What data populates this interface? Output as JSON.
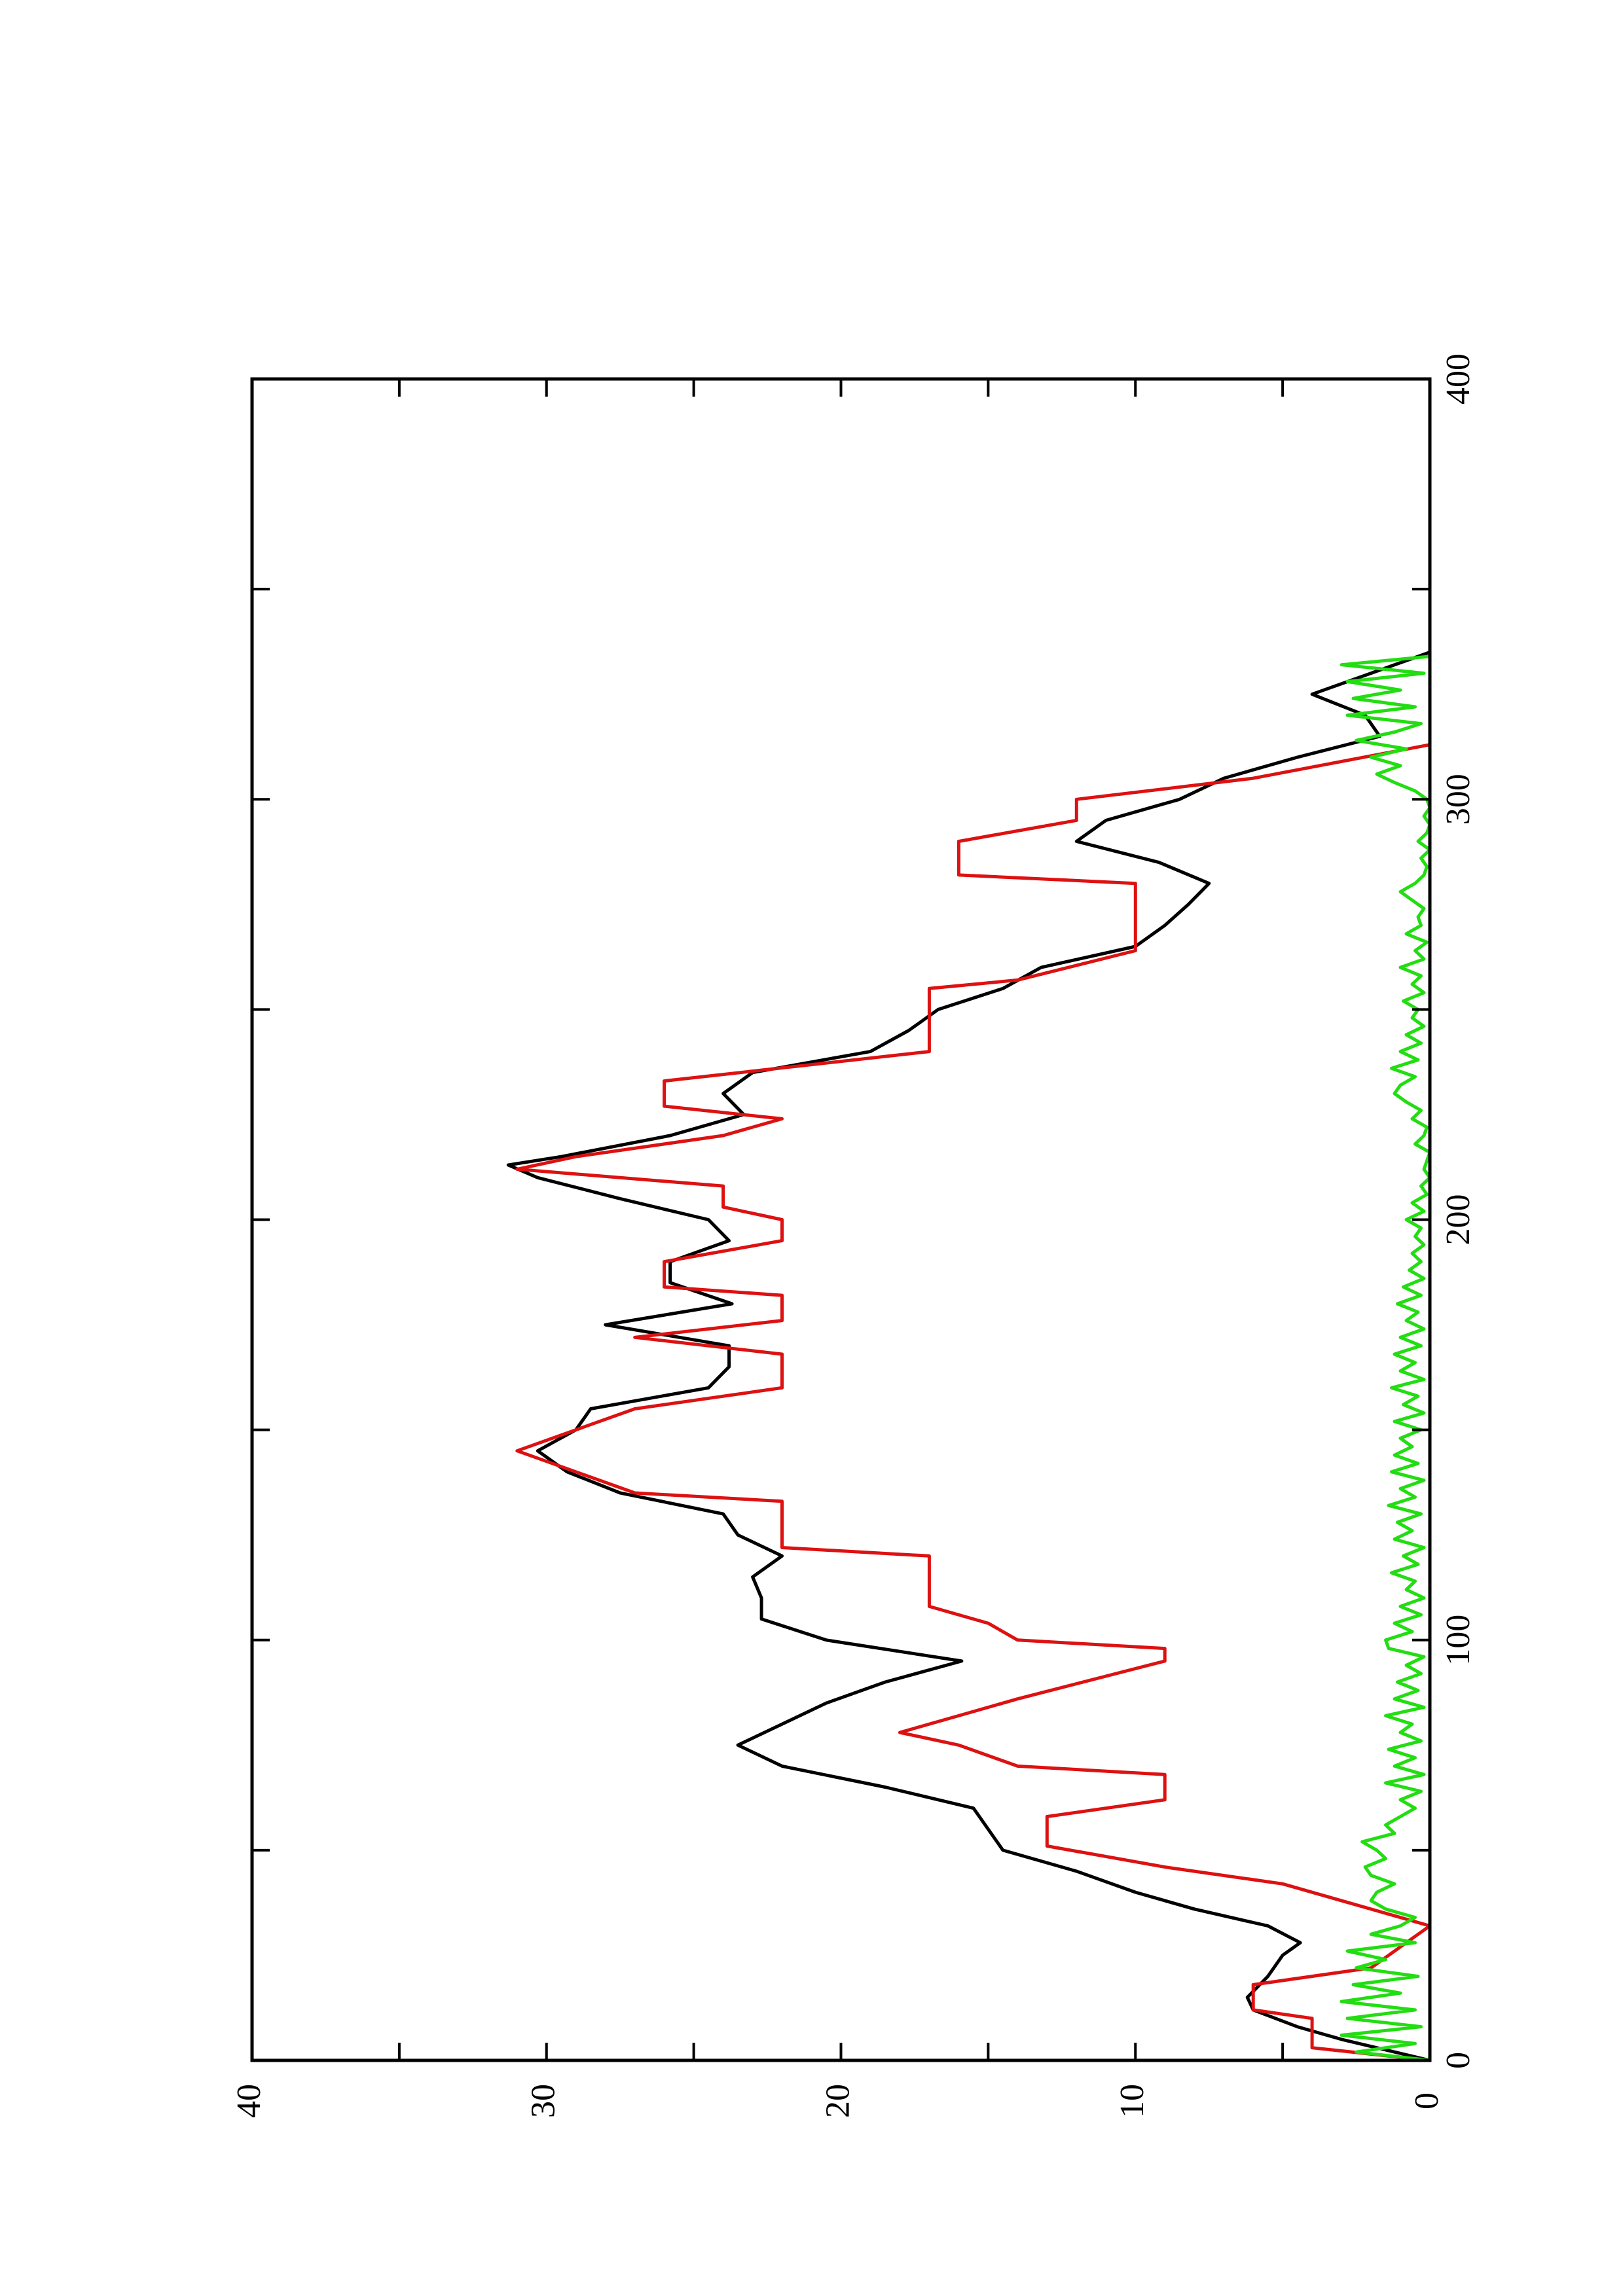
{
  "chart_data": {
    "type": "line",
    "xlim": [
      0,
      400
    ],
    "xticks": [
      0,
      100,
      200,
      300,
      400
    ],
    "xminorticks": [
      50,
      150,
      250,
      350
    ],
    "ylim": [
      0,
      40
    ],
    "yticks": [
      0,
      10,
      20,
      30,
      40
    ],
    "yminorticks": [
      5,
      15,
      25,
      35
    ],
    "orientation": "rotated",
    "series": [
      {
        "color": "#000000",
        "x": [
          0,
          5,
          8,
          12,
          15,
          20,
          25,
          28,
          32,
          36,
          40,
          45,
          50,
          55,
          60,
          65,
          70,
          75,
          80,
          85,
          90,
          95,
          100,
          105,
          110,
          115,
          120,
          125,
          130,
          135,
          140,
          145,
          150,
          155,
          160,
          165,
          170,
          175,
          180,
          185,
          190,
          195,
          200,
          205,
          210,
          213,
          215,
          220,
          225,
          230,
          235,
          240,
          245,
          250,
          255,
          260,
          265,
          270,
          275,
          280,
          285,
          290,
          295,
          300,
          305,
          310,
          315,
          320,
          325,
          330,
          335
        ],
        "values": [
          0,
          3,
          4.5,
          6,
          6.2,
          5.5,
          5,
          4.4,
          5.5,
          8,
          10,
          12,
          14.5,
          15,
          15.5,
          18.5,
          22,
          23.5,
          22,
          20.5,
          18.5,
          15.9,
          20.5,
          22.7,
          22.7,
          23,
          22,
          23.5,
          24,
          27.5,
          29.3,
          30.3,
          29,
          28.5,
          24.5,
          23.8,
          23.8,
          28,
          23.7,
          25.8,
          25.8,
          23.8,
          24.5,
          27.5,
          30.3,
          31.3,
          29.5,
          25.8,
          23.3,
          24,
          23,
          19,
          17.7,
          16.7,
          14.5,
          13.2,
          10,
          9,
          8.2,
          7.5,
          9.2,
          12,
          11,
          8.5,
          7,
          4.5,
          1.7,
          2.2,
          4,
          2,
          0
        ]
      },
      {
        "color": "#dd1111",
        "x": [
          0,
          3,
          10,
          12,
          18,
          22,
          27,
          32,
          42,
          46,
          51,
          58,
          62,
          68,
          70,
          75,
          78,
          82,
          86,
          95,
          98,
          100,
          104,
          108,
          120,
          122,
          133,
          135,
          140,
          145,
          150,
          155,
          160,
          168,
          172,
          176,
          182,
          184,
          190,
          195,
          200,
          203,
          208,
          212,
          215,
          220,
          224,
          227,
          233,
          240,
          255,
          257,
          264,
          280,
          282,
          290,
          295,
          300,
          305,
          313,
          335
        ],
        "values": [
          0,
          4,
          4,
          6,
          6,
          2,
          1,
          0,
          5,
          9,
          13,
          13,
          9,
          9,
          14,
          16,
          18,
          16,
          14,
          9,
          9,
          14,
          15,
          17,
          17,
          22,
          22,
          27,
          29,
          31,
          29,
          27,
          22,
          22,
          27,
          22,
          22,
          26,
          26,
          22,
          22,
          24,
          24,
          31,
          29,
          24,
          22,
          26,
          26,
          17,
          17,
          14,
          10,
          10,
          16,
          16,
          12,
          12,
          6,
          0,
          0
        ]
      },
      {
        "color": "#22dd11",
        "x": [
          0,
          2,
          4,
          6,
          8,
          10,
          12,
          14,
          16,
          18,
          20,
          22,
          24,
          26,
          28,
          30,
          32,
          34,
          36,
          38,
          40,
          42,
          44,
          46,
          48,
          50,
          52,
          54,
          56,
          58,
          60,
          62,
          64,
          66,
          68,
          70,
          72,
          74,
          76,
          78,
          80,
          82,
          84,
          86,
          88,
          90,
          92,
          94,
          96,
          98,
          100,
          102,
          104,
          106,
          108,
          110,
          112,
          114,
          116,
          118,
          120,
          122,
          124,
          126,
          128,
          130,
          132,
          134,
          136,
          138,
          140,
          142,
          144,
          146,
          148,
          150,
          152,
          154,
          156,
          158,
          160,
          162,
          164,
          166,
          168,
          170,
          172,
          174,
          176,
          178,
          180,
          182,
          184,
          186,
          188,
          190,
          192,
          194,
          196,
          198,
          200,
          202,
          204,
          206,
          208,
          210,
          212,
          214,
          216,
          218,
          220,
          222,
          224,
          226,
          228,
          230,
          232,
          234,
          236,
          238,
          240,
          242,
          244,
          246,
          248,
          250,
          252,
          254,
          256,
          258,
          260,
          262,
          264,
          266,
          268,
          270,
          272,
          274,
          276,
          278,
          280,
          282,
          284,
          286,
          288,
          290,
          292,
          294,
          296,
          298,
          300,
          302,
          304,
          306,
          308,
          310,
          312,
          314,
          316,
          318,
          320,
          322,
          324,
          326,
          328,
          330,
          332,
          334
        ],
        "values": [
          0,
          2.5,
          0.5,
          3,
          0.3,
          2.8,
          0.5,
          3,
          1,
          2.6,
          0.4,
          2.5,
          1.5,
          2.8,
          0.5,
          2,
          1,
          0.5,
          1.5,
          2,
          1.8,
          1.2,
          2,
          2.2,
          1.5,
          1.8,
          2.3,
          1.2,
          1.5,
          1,
          0.5,
          1,
          0.3,
          1.5,
          0.2,
          1.2,
          0.5,
          1.4,
          0.3,
          1,
          0.6,
          1.5,
          0.2,
          1.2,
          0.4,
          1.1,
          0.3,
          0.8,
          0.2,
          1.4,
          1.5,
          0.6,
          1.2,
          0.3,
          1,
          0.2,
          0.8,
          0.5,
          1.3,
          0.4,
          0.9,
          0.2,
          1.2,
          0.6,
          1.1,
          0.3,
          1.4,
          0.5,
          1,
          0.2,
          1.3,
          0.4,
          1.2,
          0.6,
          1,
          0.3,
          1.2,
          0.2,
          0.9,
          0.4,
          1.3,
          0.2,
          1,
          0.5,
          1.2,
          0.3,
          1,
          0.2,
          0.8,
          0.4,
          1.1,
          0.3,
          0.9,
          0.2,
          0.7,
          0.3,
          0.6,
          0.2,
          0.5,
          0.3,
          0.8,
          0.2,
          0.6,
          0.1,
          0.3,
          0,
          0.2,
          0.1,
          0,
          0.5,
          0.2,
          0.1,
          0.6,
          0.3,
          0.8,
          1.2,
          1,
          0.5,
          1.3,
          0.4,
          1,
          0.3,
          0.8,
          0.2,
          0.6,
          0.4,
          0.9,
          0.2,
          0.6,
          0.3,
          1,
          0.2,
          0.5,
          0.1,
          0.8,
          0.3,
          0.4,
          0.2,
          0.6,
          1,
          0.5,
          0.2,
          0.1,
          0.3,
          0,
          0.4,
          0.1,
          0,
          0.2,
          0,
          0.1,
          0.5,
          1.2,
          1.8,
          1,
          2,
          0.8,
          2.5,
          1.2,
          0.3,
          2.8,
          0.5,
          2.6,
          1,
          2.8,
          0.2,
          3,
          0
        ]
      }
    ]
  }
}
